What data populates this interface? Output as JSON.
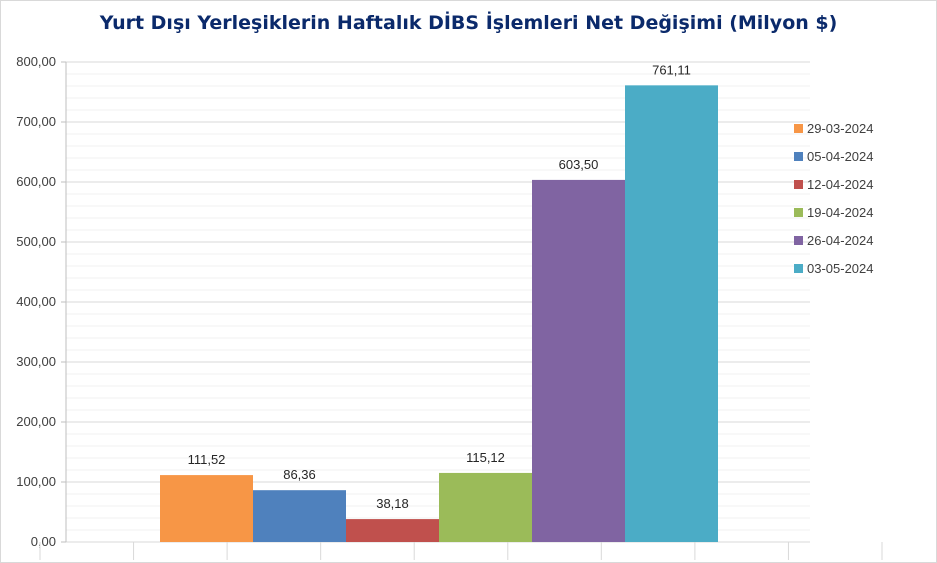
{
  "chart_data": {
    "type": "bar",
    "title": "Yurt Dışı Yerleşiklerin Haftalık DİBS İşlemleri Net Değişimi (Milyon $)",
    "xlabel": "",
    "ylabel": "",
    "ylim": [
      0,
      800
    ],
    "yticks": [
      0,
      100,
      200,
      300,
      400,
      500,
      600,
      700,
      800
    ],
    "ytick_labels": [
      "0,00",
      "100,00",
      "200,00",
      "300,00",
      "400,00",
      "500,00",
      "600,00",
      "700,00",
      "800,00"
    ],
    "grid": true,
    "legend_position": "right",
    "series": [
      {
        "name": "29-03-2024",
        "value": 111.52,
        "label": "111,52",
        "color": "#f79646"
      },
      {
        "name": "05-04-2024",
        "value": 86.36,
        "label": "86,36",
        "color": "#4f81bd"
      },
      {
        "name": "12-04-2024",
        "value": 38.18,
        "label": "38,18",
        "color": "#c0504d"
      },
      {
        "name": "19-04-2024",
        "value": 115.12,
        "label": "115,12",
        "color": "#9bbb59"
      },
      {
        "name": "26-04-2024",
        "value": 603.5,
        "label": "603,50",
        "color": "#8064a2"
      },
      {
        "name": "03-05-2024",
        "value": 761.11,
        "label": "761,11",
        "color": "#4bacc6"
      }
    ]
  }
}
